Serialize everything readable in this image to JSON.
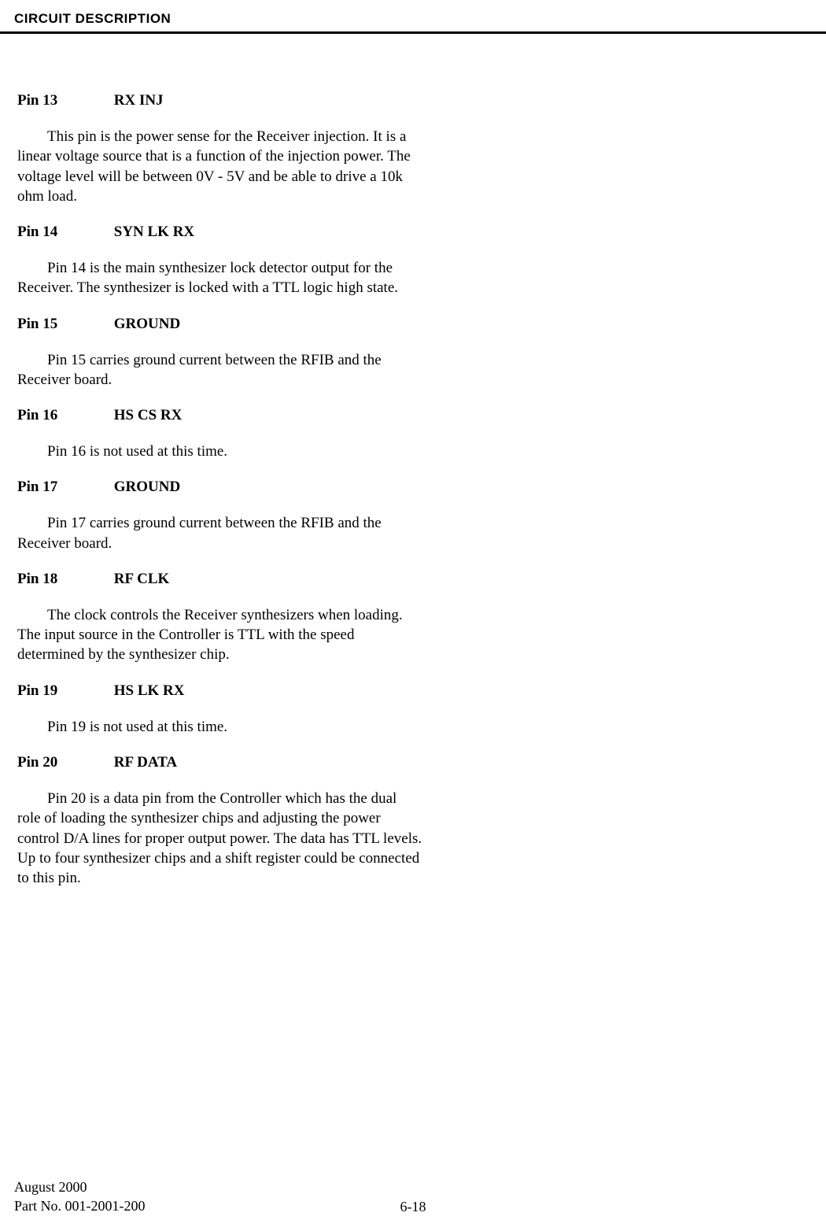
{
  "header": {
    "title": "CIRCUIT DESCRIPTION"
  },
  "pins": [
    {
      "num": "Pin 13",
      "name": "RX INJ",
      "body": "This pin is the power sense for the Receiver injection.  It is a linear voltage source that is a func­tion of the injection power.  The voltage level will be between 0V - 5V and be able to drive a 10k ohm load."
    },
    {
      "num": "Pin 14",
      "name": "SYN LK RX",
      "body": "Pin 14 is the main synthesizer lock detector out­put for the Receiver.  The synthesizer is locked with a TTL logic high state."
    },
    {
      "num": "Pin 15",
      "name": "GROUND",
      "body": "Pin 15 carries ground current between the RFIB and the Receiver board."
    },
    {
      "num": "Pin 16",
      "name": "HS CS RX",
      "body": "Pin 16 is not used at this time."
    },
    {
      "num": "Pin 17",
      "name": "GROUND",
      "body": "Pin 17 carries ground current between the RFIB and the Receiver board."
    },
    {
      "num": "Pin 18",
      "name": "RF CLK",
      "body": "The clock controls the Receiver synthesizers when loading.  The input source in the Controller is TTL with the speed determined by the synthesizer chip."
    },
    {
      "num": "Pin 19",
      "name": "HS LK RX",
      "body": "Pin 19 is not used at this time."
    },
    {
      "num": "Pin 20",
      "name": "RF DATA",
      "body": "Pin 20 is a data pin from the Controller which has the dual role of loading the synthesizer chips and adjusting the power control D/A lines for proper out­put power.  The data has TTL levels.  Up to four syn­thesizer chips and a shift register could be connected to this pin."
    }
  ],
  "footer": {
    "date": "August 2000",
    "part": "Part No. 001-2001-200",
    "page": "6-18"
  }
}
